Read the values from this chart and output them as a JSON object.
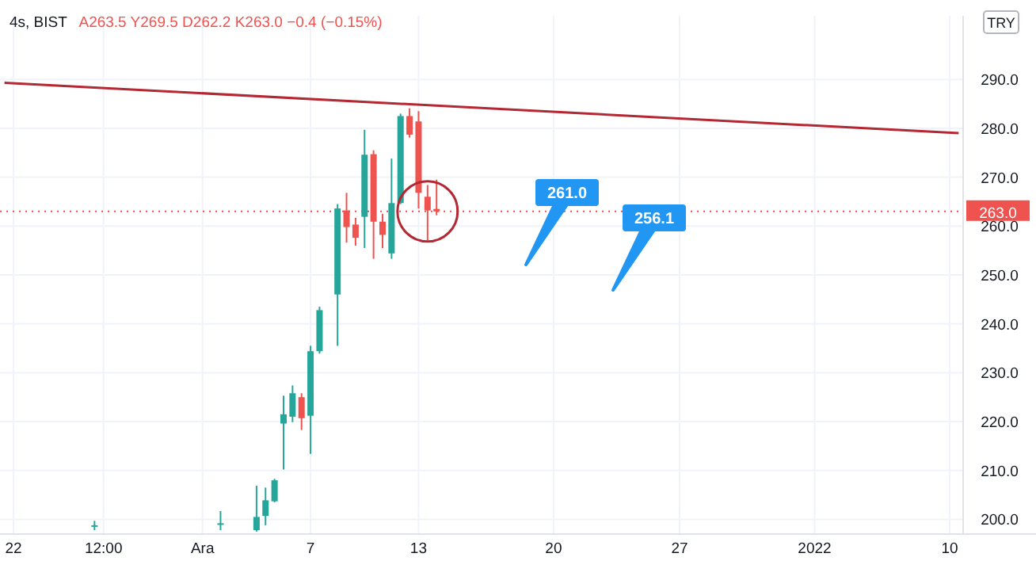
{
  "chart_data": {
    "type": "candlestick",
    "title": "4s, BIST",
    "subtitle": "A263.5 Y269.5 D262.2 K263.0 −0.4 (−0.15%)",
    "ylabel": "TRY",
    "categories": [
      null,
      "22",
      null,
      null,
      null,
      null,
      null,
      null,
      null,
      null,
      null,
      "12:00",
      null,
      null,
      null,
      null,
      null,
      null,
      null,
      null,
      null,
      null,
      "Ara",
      null,
      null,
      null,
      null,
      null,
      null,
      null,
      null,
      null,
      null,
      null,
      "7",
      null,
      null,
      null,
      null,
      null,
      null,
      null,
      null,
      null,
      null,
      null,
      "13",
      null,
      null,
      null,
      null,
      null,
      null,
      null,
      null,
      null,
      null,
      null,
      null,
      null,
      null,
      "20",
      null,
      null,
      null,
      null,
      null,
      null,
      null,
      null,
      null,
      null,
      null,
      null,
      null,
      "27",
      null,
      null,
      null,
      null,
      null,
      null,
      null,
      null,
      null,
      null,
      null,
      null,
      null,
      null,
      "2022",
      null,
      null,
      null,
      null,
      null,
      null,
      null,
      null,
      null,
      null,
      null,
      null,
      null,
      null,
      "10",
      null
    ],
    "ohlc": [
      null,
      null,
      null,
      null,
      null,
      null,
      null,
      null,
      null,
      null,
      [
        198.5,
        199.7,
        197.8,
        198.8
      ],
      null,
      null,
      null,
      null,
      null,
      null,
      null,
      null,
      null,
      null,
      null,
      null,
      null,
      [
        199,
        201.7,
        197.8,
        199.2
      ],
      null,
      null,
      null,
      [
        197.8,
        206.9,
        197.5,
        200.5
      ],
      [
        200.7,
        206.5,
        198.8,
        203.9
      ],
      [
        203.7,
        208.3,
        203.5,
        208.0
      ],
      [
        219.6,
        225.3,
        210.2,
        221.5
      ],
      [
        221,
        227.4,
        219.9,
        225.8
      ],
      [
        225,
        225.8,
        218.3,
        220.7
      ],
      [
        221.2,
        235.5,
        213.4,
        234.4
      ],
      [
        234.4,
        243.5,
        233.9,
        242.8
      ],
      null,
      [
        246,
        264.5,
        235.5,
        263.6
      ],
      [
        263.2,
        266.8,
        256.6,
        259.8
      ],
      [
        260.3,
        261.7,
        256.0,
        257.6
      ],
      [
        261.9,
        279.7,
        255.5,
        274.6
      ],
      [
        274.7,
        275.5,
        253.3,
        260.9
      ],
      [
        260.9,
        262.5,
        255.5,
        258.2
      ],
      [
        254.4,
        273.8,
        253.3,
        264.7
      ],
      [
        264.7,
        283,
        264.5,
        282.5
      ],
      [
        282.5,
        284.1,
        278.1,
        278.7
      ],
      [
        281.4,
        283.5,
        263.6,
        266.8
      ],
      [
        266,
        268.4,
        257.1,
        263.2
      ],
      [
        263.5,
        269.5,
        262.2,
        263.0
      ],
      null,
      null,
      null,
      null,
      null,
      null,
      null,
      null,
      null,
      null,
      null,
      null,
      null,
      null,
      null,
      null,
      null,
      null,
      null,
      null,
      null,
      null,
      null,
      null,
      null,
      null,
      null,
      null,
      null,
      null,
      null,
      null,
      null,
      null,
      null,
      null,
      null,
      null,
      null,
      null,
      null,
      null,
      null,
      null,
      null,
      null,
      null,
      null,
      null,
      null,
      null,
      null,
      null,
      null,
      null,
      null,
      null,
      null
    ],
    "colors": [
      null,
      null,
      null,
      null,
      null,
      null,
      null,
      null,
      null,
      null,
      "#26a69a",
      null,
      null,
      null,
      null,
      null,
      null,
      null,
      null,
      null,
      null,
      null,
      null,
      null,
      "#26a69a",
      null,
      null,
      null,
      "#26a69a",
      "#26a69a",
      "#26a69a",
      "#26a69a",
      "#26a69a",
      "#ef5350",
      "#26a69a",
      "#26a69a",
      null,
      "#26a69a",
      "#ef5350",
      "#ef5350",
      "#26a69a",
      "#ef5350",
      "#ef5350",
      "#26a69a",
      "#26a69a",
      "#ef5350",
      "#ef5350",
      "#ef5350",
      "#ef5350",
      null,
      null,
      null,
      null,
      null,
      null,
      null,
      null,
      null,
      null,
      null,
      null,
      null,
      null,
      null,
      null,
      null,
      null,
      null,
      null,
      null,
      null,
      null,
      null,
      null,
      null,
      null,
      null,
      null,
      null,
      null,
      null,
      null,
      null,
      null,
      null,
      null,
      null,
      null,
      null,
      null,
      null,
      null,
      null,
      null,
      null,
      null,
      null,
      null,
      null,
      null,
      null,
      null,
      null,
      null,
      null,
      null,
      null
    ],
    "series": [
      {
        "type": "line",
        "color": "#b22833",
        "values": [
          289.3,
          null,
          null,
          null,
          null,
          null,
          null,
          null,
          null,
          null,
          null,
          null,
          null,
          null,
          null,
          null,
          null,
          null,
          null,
          null,
          null,
          null,
          null,
          null,
          null,
          null,
          null,
          null,
          null,
          null,
          null,
          null,
          null,
          null,
          null,
          null,
          null,
          null,
          null,
          null,
          null,
          null,
          null,
          null,
          null,
          null,
          null,
          null,
          null,
          null,
          null,
          null,
          null,
          null,
          null,
          null,
          null,
          null,
          null,
          null,
          null,
          null,
          null,
          null,
          null,
          null,
          null,
          null,
          null,
          null,
          null,
          null,
          null,
          null,
          null,
          null,
          null,
          null,
          null,
          null,
          null,
          null,
          null,
          null,
          null,
          null,
          null,
          null,
          null,
          null,
          null,
          null,
          null,
          null,
          null,
          null,
          null,
          null,
          null,
          null,
          null,
          null,
          null,
          null,
          null,
          null,
          279.0
        ]
      }
    ],
    "ylim": [
      197,
      303
    ],
    "yticks": [
      {
        "value": 200,
        "label": "200.0"
      },
      {
        "value": 210,
        "label": "210.0"
      },
      {
        "value": 220,
        "label": "220.0"
      },
      {
        "value": 230,
        "label": "230.0"
      },
      {
        "value": 240,
        "label": "240.0"
      },
      {
        "value": 250,
        "label": "250.0"
      },
      {
        "value": 260,
        "label": "260.0"
      },
      {
        "value": 270,
        "label": "270.0"
      },
      {
        "value": 280,
        "label": "280.0"
      },
      {
        "value": 290,
        "label": "290.0"
      }
    ],
    "ref_lines": [
      {
        "axis": "y",
        "value": 263.0,
        "label": "263.0",
        "color": "#ef5350",
        "line_style": "dotted"
      }
    ],
    "annotations": [
      "261.0",
      "256.1"
    ],
    "grid": true
  }
}
